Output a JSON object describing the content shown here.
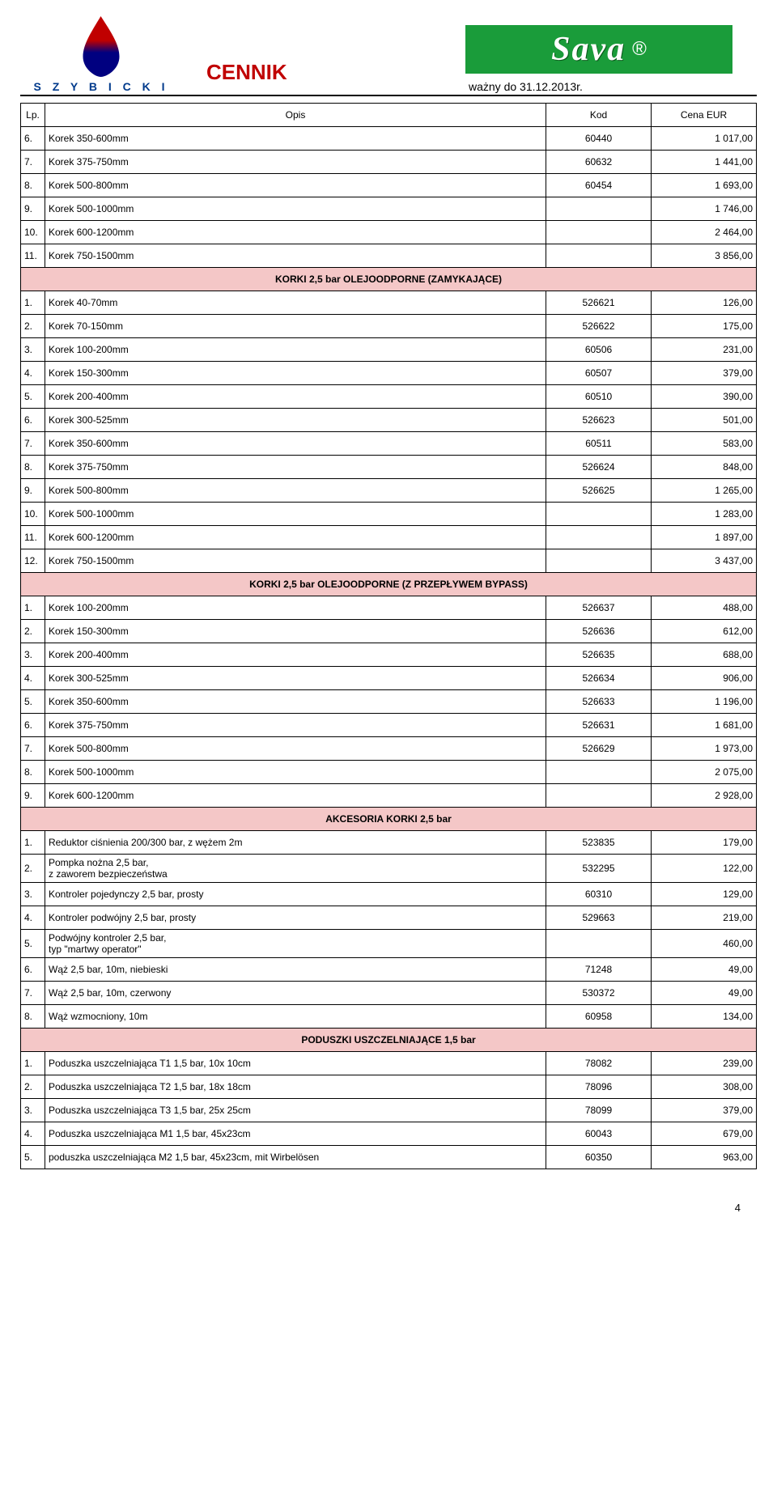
{
  "header": {
    "brand_left": "S Z Y B I C K I",
    "title": "CENNIK",
    "brand_right": "Sava",
    "valid": "ważny do 31.12.2013r."
  },
  "columns": {
    "c1": "Lp.",
    "c2": "Opis",
    "c3": "Kod",
    "c4": "Cena EUR"
  },
  "colors": {
    "section_bg": "#f4c7c7",
    "accent_red": "#c00000",
    "accent_blue": "#003a8c",
    "sava_green": "#1a9c3a"
  },
  "rows": [
    {
      "n": "6.",
      "d": "Korek 350-600mm",
      "k": "60440",
      "p": "1 017,00"
    },
    {
      "n": "7.",
      "d": "Korek 375-750mm",
      "k": "60632",
      "p": "1 441,00"
    },
    {
      "n": "8.",
      "d": "Korek 500-800mm",
      "k": "60454",
      "p": "1 693,00"
    },
    {
      "n": "9.",
      "d": "Korek 500-1000mm",
      "k": "",
      "p": "1 746,00"
    },
    {
      "n": "10.",
      "d": "Korek 600-1200mm",
      "k": "",
      "p": "2 464,00"
    },
    {
      "n": "11.",
      "d": "Korek 750-1500mm",
      "k": "",
      "p": "3 856,00"
    },
    {
      "section": "KORKI 2,5 bar OLEJOODPORNE (ZAMYKAJĄCE)"
    },
    {
      "n": "1.",
      "d": "Korek 40-70mm",
      "k": "526621",
      "p": "126,00"
    },
    {
      "n": "2.",
      "d": "Korek 70-150mm",
      "k": "526622",
      "p": "175,00"
    },
    {
      "n": "3.",
      "d": "Korek 100-200mm",
      "k": "60506",
      "p": "231,00"
    },
    {
      "n": "4.",
      "d": "Korek 150-300mm",
      "k": "60507",
      "p": "379,00"
    },
    {
      "n": "5.",
      "d": "Korek 200-400mm",
      "k": "60510",
      "p": "390,00"
    },
    {
      "n": "6.",
      "d": "Korek 300-525mm",
      "k": "526623",
      "p": "501,00"
    },
    {
      "n": "7.",
      "d": "Korek 350-600mm",
      "k": "60511",
      "p": "583,00"
    },
    {
      "n": "8.",
      "d": "Korek 375-750mm",
      "k": "526624",
      "p": "848,00"
    },
    {
      "n": "9.",
      "d": "Korek 500-800mm",
      "k": "526625",
      "p": "1 265,00"
    },
    {
      "n": "10.",
      "d": "Korek 500-1000mm",
      "k": "",
      "p": "1 283,00"
    },
    {
      "n": "11.",
      "d": "Korek 600-1200mm",
      "k": "",
      "p": "1 897,00"
    },
    {
      "n": "12.",
      "d": "Korek 750-1500mm",
      "k": "",
      "p": "3 437,00"
    },
    {
      "section": "KORKI 2,5 bar OLEJOODPORNE (Z PRZEPŁYWEM BYPASS)"
    },
    {
      "n": "1.",
      "d": "Korek 100-200mm",
      "k": "526637",
      "p": "488,00"
    },
    {
      "n": "2.",
      "d": "Korek 150-300mm",
      "k": "526636",
      "p": "612,00"
    },
    {
      "n": "3.",
      "d": "Korek 200-400mm",
      "k": "526635",
      "p": "688,00"
    },
    {
      "n": "4.",
      "d": "Korek 300-525mm",
      "k": "526634",
      "p": "906,00"
    },
    {
      "n": "5.",
      "d": "Korek 350-600mm",
      "k": "526633",
      "p": "1 196,00"
    },
    {
      "n": "6.",
      "d": "Korek 375-750mm",
      "k": "526631",
      "p": "1 681,00"
    },
    {
      "n": "7.",
      "d": "Korek 500-800mm",
      "k": "526629",
      "p": "1 973,00"
    },
    {
      "n": "8.",
      "d": "Korek 500-1000mm",
      "k": "",
      "p": "2 075,00"
    },
    {
      "n": "9.",
      "d": "Korek 600-1200mm",
      "k": "",
      "p": "2 928,00"
    },
    {
      "section": "AKCESORIA KORKI 2,5 bar"
    },
    {
      "n": "1.",
      "d": "Reduktor ciśnienia 200/300 bar, z wężem 2m",
      "k": "523835",
      "p": "179,00"
    },
    {
      "n": "2.",
      "d": "Pompka nożna 2,5 bar,\n z zaworem bezpieczeństwa",
      "k": "532295",
      "p": "122,00"
    },
    {
      "n": "3.",
      "d": "Kontroler pojedynczy 2,5 bar, prosty",
      "k": "60310",
      "p": "129,00"
    },
    {
      "n": "4.",
      "d": "Kontroler podwójny 2,5 bar, prosty",
      "k": "529663",
      "p": "219,00"
    },
    {
      "n": "5.",
      "d": "Podwójny kontroler 2,5 bar,\n typ \"martwy operator\"",
      "k": "",
      "p": "460,00"
    },
    {
      "n": "6.",
      "d": "Wąż 2,5 bar, 10m, niebieski",
      "k": "71248",
      "p": "49,00"
    },
    {
      "n": "7.",
      "d": "Wąż 2,5 bar, 10m, czerwony",
      "k": "530372",
      "p": "49,00"
    },
    {
      "n": "8.",
      "d": "Wąż wzmocniony, 10m",
      "k": "60958",
      "p": "134,00"
    },
    {
      "section": "PODUSZKI USZCZELNIAJĄCE 1,5 bar"
    },
    {
      "n": "1.",
      "d": "Poduszka uszczelniająca T1 1,5 bar, 10x 10cm",
      "k": "78082",
      "p": "239,00"
    },
    {
      "n": "2.",
      "d": "Poduszka uszczelniająca T2 1,5 bar, 18x 18cm",
      "k": "78096",
      "p": "308,00"
    },
    {
      "n": "3.",
      "d": "Poduszka uszczelniająca T3 1,5 bar, 25x 25cm",
      "k": "78099",
      "p": "379,00"
    },
    {
      "n": "4.",
      "d": "Poduszka uszczelniająca M1 1,5 bar, 45x23cm",
      "k": "60043",
      "p": "679,00"
    },
    {
      "n": "5.",
      "d": "poduszka uszczelniająca M2 1,5 bar, 45x23cm, mit Wirbelösen",
      "k": "60350",
      "p": "963,00"
    }
  ],
  "page_number": "4"
}
